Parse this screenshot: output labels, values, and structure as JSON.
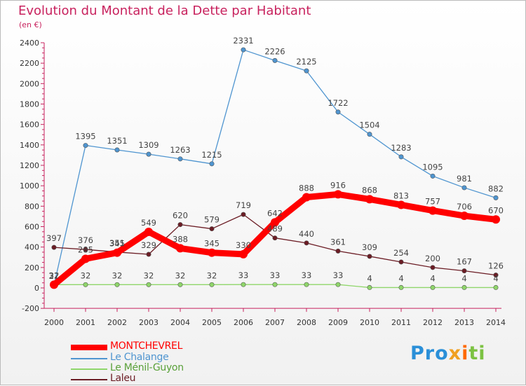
{
  "title": "Evolution du Montant de la Dette par Habitant",
  "subtitle": "(en €)",
  "chart_data": {
    "type": "line",
    "x": [
      "2000",
      "2001",
      "2002",
      "2003",
      "2004",
      "2005",
      "2006",
      "2007",
      "2008",
      "2009",
      "2010",
      "2011",
      "2012",
      "2013",
      "2014"
    ],
    "ylim": [
      -200,
      2400
    ],
    "yticks": [
      -200,
      0,
      200,
      400,
      600,
      800,
      1000,
      1200,
      1400,
      1600,
      1800,
      2000,
      2200,
      2400
    ],
    "grid": false,
    "legend": "bottom-left",
    "series": [
      {
        "name": "MONTCHEVREL",
        "color": "#ff0000",
        "values": [
          32,
          285,
          345,
          549,
          388,
          345,
          330,
          642,
          888,
          916,
          868,
          813,
          757,
          706,
          670
        ],
        "labels": [
          "32",
          "285",
          "345",
          "549",
          "388",
          "345",
          "330",
          "642",
          "888",
          "916",
          "868",
          "813",
          "757",
          "706",
          "670"
        ]
      },
      {
        "name": "Le Chalange",
        "color": "#4f95d0",
        "values": [
          27,
          1395,
          1351,
          1309,
          1263,
          1215,
          2331,
          2226,
          2125,
          1722,
          1504,
          1283,
          1095,
          981,
          882
        ],
        "labels": [
          "27",
          "1395",
          "1351",
          "1309",
          "1263",
          "1215",
          "2331",
          "2226",
          "2125",
          "1722",
          "1504",
          "1283",
          "1095",
          "981",
          "882"
        ]
      },
      {
        "name": "Le Ménil-Guyon",
        "color": "#8fd66a",
        "values": [
          32,
          32,
          32,
          32,
          32,
          32,
          33,
          33,
          33,
          33,
          4,
          4,
          4,
          4,
          4
        ],
        "labels": [
          "32",
          "32",
          "32",
          "32",
          "32",
          "32",
          "33",
          "33",
          "33",
          "33",
          "4",
          "4",
          "4",
          "4",
          "4"
        ]
      },
      {
        "name": "Laleu",
        "color": "#6b1c24",
        "values": [
          397,
          376,
          351,
          329,
          620,
          579,
          719,
          489,
          440,
          361,
          309,
          254,
          200,
          167,
          126
        ],
        "labels": [
          "397",
          "376",
          "351",
          "329",
          "620",
          "579",
          "719",
          "489",
          "440",
          "361",
          "309",
          "254",
          "200",
          "167",
          "126"
        ]
      }
    ]
  },
  "logo": {
    "p1": "Pro",
    "p2": "x",
    "p3": "i",
    "p4": "ti"
  }
}
